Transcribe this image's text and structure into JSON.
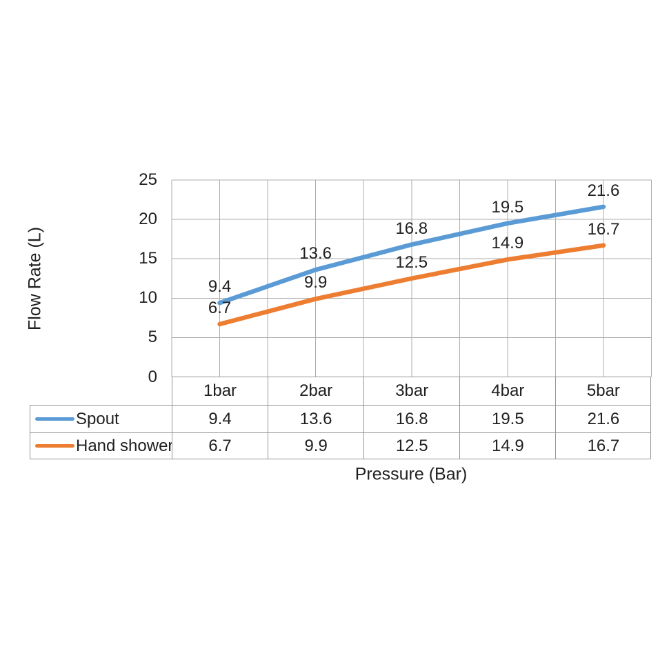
{
  "chart_data": {
    "type": "line",
    "categories": [
      "1bar",
      "2bar",
      "3bar",
      "4bar",
      "5bar"
    ],
    "series": [
      {
        "name": "Spout",
        "color": "#5B9BD5",
        "values": [
          9.4,
          13.6,
          16.8,
          19.5,
          21.6
        ]
      },
      {
        "name": "Hand shower",
        "color": "#ED7D31",
        "values": [
          6.7,
          9.9,
          12.5,
          14.9,
          16.7
        ]
      }
    ],
    "xlabel": "Pressure (Bar)",
    "ylabel": "Flow Rate (L)",
    "ylim": [
      0,
      25
    ],
    "yticks": [
      0,
      5,
      10,
      15,
      20,
      25
    ],
    "grid": true,
    "minor_x_gridlines": true,
    "data_labels": true,
    "legend_position": "data-table-left"
  }
}
